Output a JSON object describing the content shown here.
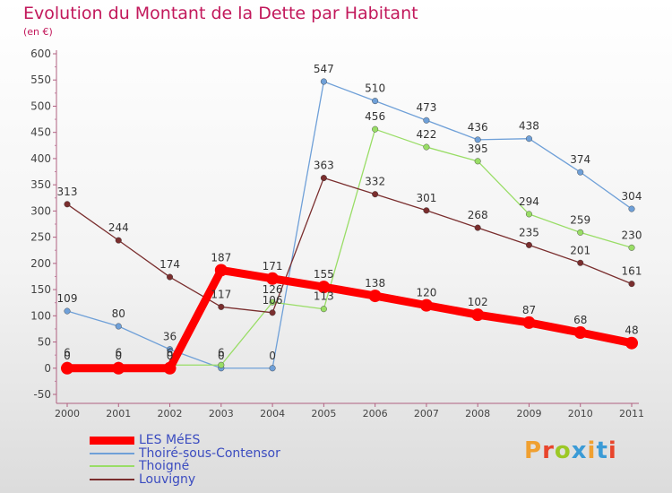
{
  "header": {
    "title": "Evolution du Montant de la Dette par Habitant",
    "subtitle": "(en €)"
  },
  "logo": {
    "text": "Proxiti",
    "colors": [
      "#f0a030",
      "#e8452c",
      "#9cc826",
      "#3b9bd6",
      "#f0a030",
      "#3b9bd6",
      "#e8452c"
    ]
  },
  "chart_data": {
    "type": "line",
    "title": "Evolution du Montant de la Dette par Habitant",
    "subtitle": "(en €)",
    "xlabel": "",
    "ylabel": "",
    "x": [
      "2000",
      "2001",
      "2002",
      "2003",
      "2004",
      "2005",
      "2006",
      "2007",
      "2008",
      "2009",
      "2010",
      "2011"
    ],
    "ylim": [
      -50,
      600
    ],
    "yticks": [
      "-50",
      "0",
      "50",
      "100",
      "150",
      "200",
      "250",
      "300",
      "350",
      "400",
      "450",
      "500",
      "550",
      "600"
    ],
    "grid": false,
    "legend_position": "bottom-left",
    "series": [
      {
        "name": "LES MéES",
        "color": "#ff0000",
        "emphasis": true,
        "values": [
          0,
          0,
          0,
          187,
          171,
          155,
          138,
          120,
          102,
          87,
          68,
          48
        ],
        "labels": [
          "0",
          "0",
          "0",
          "187",
          "171",
          "155",
          "138",
          "120",
          "102",
          "87",
          "68",
          "48"
        ]
      },
      {
        "name": "Thoiré-sous-Contensor",
        "color": "#6fa0d8",
        "emphasis": false,
        "values": [
          109,
          80,
          36,
          0,
          0,
          547,
          510,
          473,
          436,
          438,
          374,
          304
        ],
        "labels": [
          "109",
          "80",
          "36",
          "0",
          "0",
          "547",
          "510",
          "473",
          "436",
          "438",
          "374",
          "304"
        ]
      },
      {
        "name": "Thoigné",
        "color": "#99dd66",
        "emphasis": false,
        "values": [
          6,
          6,
          6,
          6,
          126,
          113,
          456,
          422,
          395,
          294,
          259,
          230
        ],
        "labels": [
          "6",
          "6",
          "6",
          "6",
          "126",
          "113",
          "456",
          "422",
          "395",
          "294",
          "259",
          "230"
        ]
      },
      {
        "name": "Louvigny",
        "color": "#7a2e2e",
        "emphasis": false,
        "values": [
          313,
          244,
          174,
          117,
          106,
          363,
          332,
          301,
          268,
          235,
          201,
          161
        ],
        "labels": [
          "313",
          "244",
          "174",
          "117",
          "106",
          "363",
          "332",
          "301",
          "268",
          "235",
          "201",
          "161"
        ]
      }
    ]
  }
}
